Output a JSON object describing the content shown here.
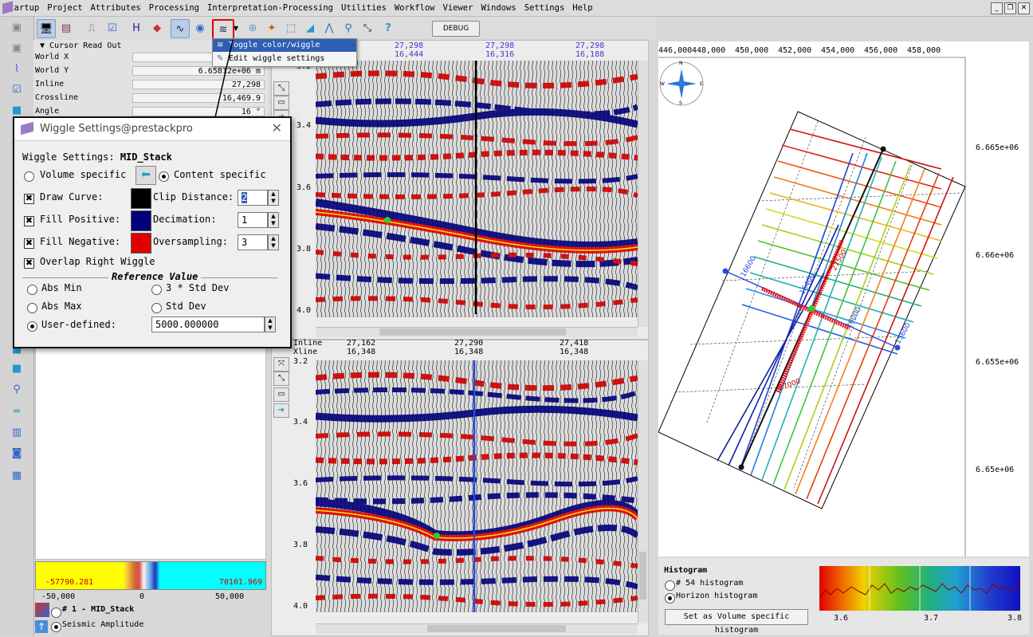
{
  "menubar": {
    "items": [
      "Startup",
      "Project",
      "Attributes",
      "Processing",
      "Interpretation-Processing",
      "Utilities",
      "Workflow",
      "Viewer",
      "Windows",
      "Settings",
      "Help"
    ]
  },
  "toolbar": {
    "debug_label": "DEBUG"
  },
  "context_menu": {
    "items": [
      "Toggle color/wiggle display",
      "Edit wiggle settings"
    ]
  },
  "readout": {
    "title": "Cursor Read Out",
    "rows": [
      {
        "label": "World X",
        "value": ""
      },
      {
        "label": "World Y",
        "value": "6.65812e+06 m"
      },
      {
        "label": "Inline",
        "value": "27,298"
      },
      {
        "label": "Crossline",
        "value": "16,469.9"
      },
      {
        "label": "Angle",
        "value": "16 °"
      }
    ]
  },
  "dialog": {
    "title": "Wiggle Settings@prestackpro",
    "heading_prefix": "Wiggle Settings:",
    "heading_name": "MID_Stack",
    "volume_specific": "Volume specific",
    "content_specific": "Content specific",
    "draw_curve": "Draw Curve:",
    "fill_positive": "Fill Positive:",
    "fill_negative": "Fill Negative:",
    "overlap": "Overlap Right Wiggle",
    "clip_distance_label": "Clip Distance:",
    "clip_distance_value": "2",
    "decimation_label": "Decimation:",
    "decimation_value": "1",
    "oversampling_label": "Oversampling:",
    "oversampling_value": "3",
    "reference_value_title": "Reference Value",
    "abs_min": "Abs Min",
    "abs_max": "Abs Max",
    "user_defined": "User-defined:",
    "std3": "3 * Std Dev",
    "std": "Std Dev",
    "user_value": "5000.000000",
    "colors": {
      "curve": "#000000",
      "positive": "#00007a",
      "negative": "#e00000"
    }
  },
  "colorbar": {
    "min_label": "-57790.281",
    "max_label": "70101.969",
    "ticks": [
      "-50,000",
      "0",
      "50,000"
    ]
  },
  "layer_list": {
    "item1": "# 1 - MID_Stack",
    "item2": "Seismic Amplitude"
  },
  "section_top": {
    "header_cols": [
      {
        "inline": "27,298",
        "xline": "16,444"
      },
      {
        "inline": "27,298",
        "xline": "16,316"
      },
      {
        "inline": "27,298",
        "xline": "16,188"
      }
    ],
    "y_ticks": [
      "3.2",
      "3.4",
      "3.6",
      "3.8",
      "4.0"
    ]
  },
  "section_bottom": {
    "row_labels": [
      "Inline",
      "Xline"
    ],
    "header_cols": [
      {
        "inline": "27,162",
        "xline": "16,348"
      },
      {
        "inline": "27,290",
        "xline": "16,348"
      },
      {
        "inline": "27,418",
        "xline": "16,348"
      }
    ],
    "y_ticks": [
      "3.2",
      "3.4",
      "3.6",
      "3.8",
      "4.0"
    ]
  },
  "map": {
    "x_ticks": [
      "446,000",
      "448,000",
      "450,000",
      "452,000",
      "454,000",
      "456,000",
      "458,000"
    ],
    "y_ticks": [
      "6.665e+06",
      "6.66e+06",
      "6.655e+06",
      "6.65e+06"
    ],
    "line_labels": [
      "16600",
      "16400",
      "27500",
      "27000",
      "16000",
      "15600"
    ],
    "compass": [
      "N",
      "E",
      "S",
      "W"
    ]
  },
  "histogram": {
    "title": "Histogram",
    "option1": "# 54 histogram",
    "option2": "Horizon histogram",
    "button": "Set as Volume specific histogram",
    "x_ticks": [
      "3.6",
      "3.7",
      "3.8"
    ]
  }
}
